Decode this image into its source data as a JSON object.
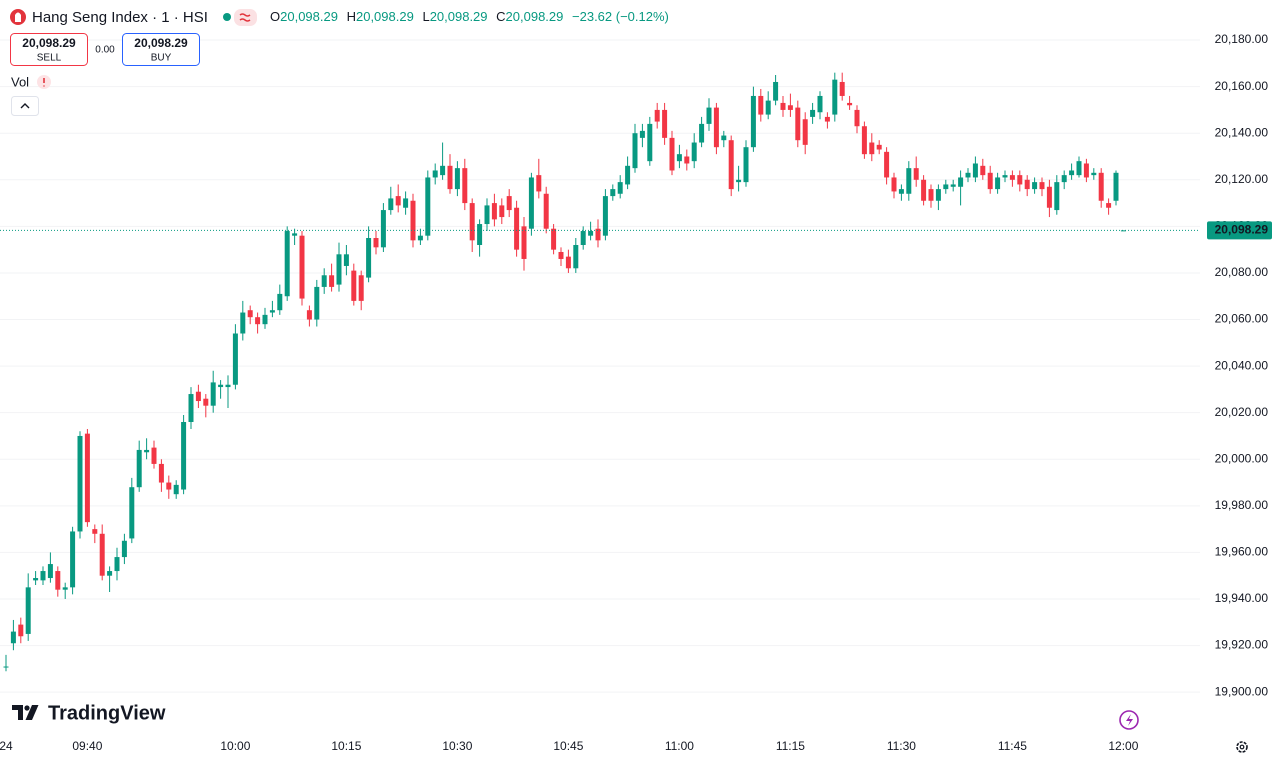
{
  "header": {
    "title": "Hang Seng Index · 1 · HSI",
    "quote": [
      {
        "label": "O",
        "value": "20,098.29"
      },
      {
        "label": "H",
        "value": "20,098.29"
      },
      {
        "label": "L",
        "value": "20,098.29"
      },
      {
        "label": "C",
        "value": "20,098.29"
      }
    ],
    "change": "−23.62 (−0.12%)"
  },
  "trade": {
    "sell_price": "20,098.29",
    "sell": "SELL",
    "spread": "0.00",
    "buy_price": "20,098.29",
    "buy": "BUY"
  },
  "volume_label": "Vol",
  "logo": "TradingView",
  "chart_data": {
    "type": "candlestick",
    "up_color": "#089981",
    "down_color": "#f23645",
    "grid": true,
    "categories": [
      "24",
      null,
      null,
      null,
      null,
      null,
      null,
      null,
      null,
      null,
      null,
      "09:40",
      null,
      null,
      null,
      null,
      null,
      null,
      null,
      null,
      null,
      null,
      null,
      null,
      null,
      null,
      null,
      null,
      null,
      null,
      null,
      "10:00",
      null,
      null,
      null,
      null,
      null,
      null,
      null,
      null,
      null,
      null,
      null,
      null,
      null,
      null,
      "10:15",
      null,
      null,
      null,
      null,
      null,
      null,
      null,
      null,
      null,
      null,
      null,
      null,
      null,
      null,
      "10:30",
      null,
      null,
      null,
      null,
      null,
      null,
      null,
      null,
      null,
      null,
      null,
      null,
      null,
      null,
      "10:45",
      null,
      null,
      null,
      null,
      null,
      null,
      null,
      null,
      null,
      null,
      null,
      null,
      null,
      null,
      "11:00",
      null,
      null,
      null,
      null,
      null,
      null,
      null,
      null,
      null,
      null,
      null,
      null,
      null,
      null,
      "11:15",
      null,
      null,
      null,
      null,
      null,
      null,
      null,
      null,
      null,
      null,
      null,
      null,
      null,
      null,
      "11:30",
      null,
      null,
      null,
      null,
      null,
      null,
      null,
      null,
      null,
      null,
      null,
      null,
      null,
      null,
      "11:45",
      null,
      null,
      null,
      null,
      null,
      null,
      null,
      null,
      null,
      null,
      null,
      null,
      null,
      null,
      "12:00"
    ],
    "open": [
      19911,
      19921,
      19929,
      19925,
      19948,
      19948,
      19949,
      19952,
      19944,
      19945,
      19969,
      20011,
      19970,
      19968,
      19950,
      19952,
      19958,
      19966,
      19988,
      20003,
      20005,
      19998,
      19990,
      19985,
      19987,
      20016,
      20029,
      20026,
      20023,
      20031,
      20031,
      20032,
      20054,
      20064,
      20061,
      20058,
      20063,
      20064,
      20070,
      20096,
      20096,
      20064,
      20060,
      20074,
      20079,
      20075,
      20083,
      20081,
      20079,
      20078,
      20095,
      20091,
      20107,
      20113,
      20108,
      20111,
      20094,
      20096,
      20121,
      20122,
      20126,
      20116,
      20125,
      20110,
      20092,
      20101,
      20110,
      20109,
      20113,
      20108,
      20100,
      20099,
      20122,
      20114,
      20099,
      20089,
      20087,
      20082,
      20092,
      20096,
      20099,
      20096,
      20113,
      20114,
      20118,
      20125,
      20138,
      20128,
      20150,
      20150,
      20138,
      20128,
      20130,
      20128,
      20136,
      20144,
      20151,
      20137,
      20137,
      20119,
      20119,
      20134,
      20156,
      20148,
      20154,
      20153,
      20152,
      20151,
      20146,
      20147,
      20149,
      20147,
      20148,
      20162,
      20153,
      20150,
      20143,
      20136,
      20135,
      20132,
      20121,
      20114,
      20114,
      20125,
      20120,
      20116,
      20111,
      20116,
      20117,
      20117,
      20121,
      20121,
      20126,
      20123,
      20116,
      20121,
      20122,
      20122,
      20120,
      20116,
      20119,
      20117,
      20107,
      20119,
      20122,
      20122,
      20127,
      20122,
      20123,
      20110,
      20111,
      20098.29
    ],
    "high": [
      19916,
      19931,
      19932,
      19951,
      19952,
      19954,
      19960,
      19954,
      19947,
      19971,
      20012,
      20013,
      19972,
      19972,
      19954,
      19962,
      19968,
      19992,
      20008,
      20009,
      20008,
      20000,
      19993,
      19991,
      20019,
      20031,
      20032,
      20028,
      20038,
      20034,
      20036,
      20058,
      20068,
      20066,
      20063,
      20065,
      20068,
      20075,
      20100,
      20099,
      20098,
      20066,
      20077,
      20082,
      20084,
      20093,
      20092,
      20084,
      20081,
      20100,
      20098,
      20110,
      20117,
      20118,
      20115,
      20114,
      20099,
      20124,
      20127,
      20136,
      20131,
      20128,
      20129,
      20112,
      20103,
      20112,
      20114,
      20112,
      20116,
      20111,
      20104,
      20123,
      20129,
      20117,
      20101,
      20091,
      20090,
      20095,
      20100,
      20102,
      20103,
      20116,
      20118,
      20122,
      20130,
      20144,
      20144,
      20147,
      20153,
      20153,
      20141,
      20135,
      20133,
      20140,
      20147,
      20155,
      20153,
      20141,
      20139,
      20126,
      20137,
      20160,
      20159,
      20158,
      20165,
      20156,
      20157,
      20154,
      20149,
      20153,
      20158,
      20149,
      20166,
      20166,
      20156,
      20152,
      20145,
      20140,
      20137,
      20134,
      20123,
      20118,
      20128,
      20130,
      20122,
      20118,
      20118,
      20120,
      20120,
      20124,
      20125,
      20130,
      20129,
      20126,
      20123,
      20124,
      20124,
      20124,
      20122,
      20121,
      20121,
      20120,
      20122,
      20124,
      20127,
      20130,
      20129,
      20125,
      20125,
      20112,
      20124,
      20098.29
    ],
    "low": [
      19909,
      19918,
      19921,
      19922,
      19946,
      19946,
      19947,
      19941,
      19940,
      19942,
      19966,
      19971,
      19964,
      19948,
      19943,
      19948,
      19955,
      19964,
      19986,
      20000,
      19996,
      19986,
      19983,
      19983,
      19985,
      20013,
      20022,
      20018,
      20020,
      20026,
      20022,
      20030,
      20051,
      20058,
      20054,
      20056,
      20061,
      20062,
      20068,
      20092,
      20066,
      20057,
      20057,
      20071,
      20072,
      20072,
      20079,
      20066,
      20064,
      20076,
      20088,
      20089,
      20105,
      20106,
      20105,
      20091,
      20092,
      20094,
      20118,
      20120,
      20114,
      20113,
      20107,
      20089,
      20087,
      20098,
      20100,
      20101,
      20104,
      20087,
      20081,
      20096,
      20112,
      20097,
      20088,
      20083,
      20080,
      20080,
      20090,
      20094,
      20091,
      20094,
      20111,
      20112,
      20116,
      20123,
      20134,
      20126,
      20142,
      20135,
      20122,
      20125,
      20124,
      20125,
      20134,
      20141,
      20131,
      20134,
      20113,
      20115,
      20117,
      20132,
      20145,
      20146,
      20152,
      20147,
      20147,
      20134,
      20131,
      20144,
      20146,
      20142,
      20145,
      20154,
      20150,
      20140,
      20129,
      20128,
      20131,
      20118,
      20112,
      20111,
      20111,
      20117,
      20109,
      20108,
      20107,
      20114,
      20115,
      20109,
      20119,
      20119,
      20120,
      20114,
      20114,
      20119,
      20117,
      20115,
      20113,
      20114,
      20113,
      20104,
      20105,
      20116,
      20120,
      20121,
      20119,
      20120,
      20108,
      20105,
      20109,
      20098.29
    ],
    "close": [
      19911,
      19926,
      19924,
      19945,
      19949,
      19952,
      19955,
      19944,
      19945,
      19969,
      20010,
      19973,
      19968,
      19950,
      19952,
      19958,
      19965,
      19988,
      20004,
      20004,
      19998,
      19990,
      19987,
      19989,
      20016,
      20028,
      20025,
      20023,
      20033,
      20032,
      20032,
      20054,
      20063,
      20061,
      20058,
      20062,
      20064,
      20071,
      20098,
      20097,
      20069,
      20060,
      20074,
      20079,
      20074,
      20088,
      20088,
      20068,
      20068,
      20095,
      20091,
      20107,
      20112,
      20109,
      20112,
      20094,
      20096,
      20121,
      20124,
      20126,
      20116,
      20125,
      20110,
      20094,
      20101,
      20109,
      20103,
      20104,
      20107,
      20090,
      20086,
      20121,
      20115,
      20099,
      20090,
      20086,
      20082,
      20092,
      20098,
      20098,
      20094,
      20113,
      20116,
      20119,
      20126,
      20140,
      20141,
      20144,
      20145,
      20138,
      20124,
      20131,
      20127,
      20136,
      20144,
      20151,
      20134,
      20139,
      20116,
      20120,
      20134,
      20156,
      20148,
      20154,
      20162,
      20150,
      20150,
      20137,
      20135,
      20150,
      20156,
      20145,
      20163,
      20156,
      20152,
      20143,
      20131,
      20131,
      20133,
      20121,
      20115,
      20116,
      20125,
      20120,
      20111,
      20111,
      20116,
      20118,
      20118,
      20121,
      20123,
      20127,
      20122,
      20116,
      20121,
      20122,
      20120,
      20118,
      20116,
      20119,
      20116,
      20108,
      20119,
      20122,
      20124,
      20128,
      20121,
      20123,
      20111,
      20108,
      20123,
      20098.29
    ],
    "ylim": [
      19881.6,
      20197.2
    ],
    "yticks": [
      {
        "value": 19900,
        "label": "19,900.00"
      },
      {
        "value": 19920,
        "label": "19,920.00"
      },
      {
        "value": 19940,
        "label": "19,940.00"
      },
      {
        "value": 19960,
        "label": "19,960.00"
      },
      {
        "value": 19980,
        "label": "19,980.00"
      },
      {
        "value": 20000,
        "label": "20,000.00"
      },
      {
        "value": 20020,
        "label": "20,020.00"
      },
      {
        "value": 20040,
        "label": "20,040.00"
      },
      {
        "value": 20060,
        "label": "20,060.00"
      },
      {
        "value": 20080,
        "label": "20,080.00"
      },
      {
        "value": 20100,
        "label": "20,100.00"
      },
      {
        "value": 20120,
        "label": "20,120.00"
      },
      {
        "value": 20140,
        "label": "20,140.00"
      },
      {
        "value": 20160,
        "label": "20,160.00"
      },
      {
        "value": 20180,
        "label": "20,180.00"
      }
    ],
    "last_price": {
      "value": 20098.29,
      "label": "20,098.29"
    }
  }
}
